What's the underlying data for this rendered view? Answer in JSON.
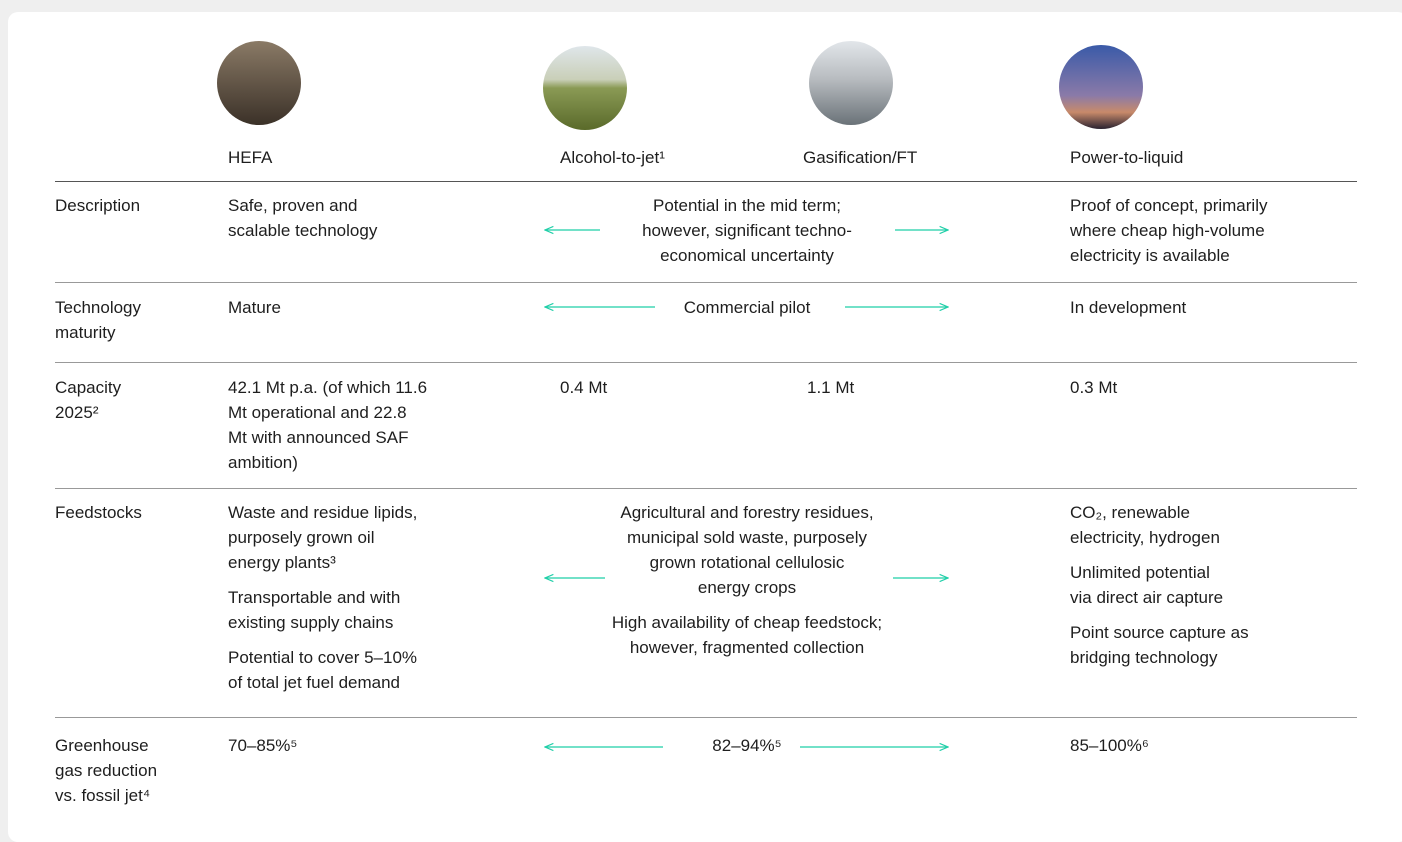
{
  "header": {
    "columns": [
      "HEFA",
      "Alcohol-to-jet¹",
      "Gasification/FT",
      "Power-to-liquid"
    ]
  },
  "rows": [
    {
      "label": [
        "Description"
      ],
      "hefa": [
        [
          "Safe, proven and",
          "scalable technology"
        ]
      ],
      "middle": [
        [
          "Potential in the mid term;",
          "however, significant techno-",
          "economical uncertainty"
        ]
      ],
      "ptl": [
        [
          "Proof of concept, primarily",
          "where cheap high-volume",
          "electricity is available"
        ]
      ]
    },
    {
      "label": [
        "Technology",
        "maturity"
      ],
      "hefa": [
        [
          "Mature"
        ]
      ],
      "middle": [
        [
          "Commercial pilot"
        ]
      ],
      "ptl": [
        [
          "In development"
        ]
      ]
    },
    {
      "label": [
        "Capacity",
        "2025²"
      ],
      "hefa": [
        [
          "42.1 Mt p.a. (of which 11.6",
          "Mt operational and 22.8",
          "Mt with announced SAF",
          "ambition)"
        ]
      ],
      "alcohol": [
        [
          "0.4 Mt"
        ]
      ],
      "gasification": [
        [
          "1.1 Mt"
        ]
      ],
      "ptl": [
        [
          "0.3 Mt"
        ]
      ]
    },
    {
      "label": [
        "Feedstocks"
      ],
      "hefa": [
        [
          "Waste and residue lipids,",
          "purposely grown oil",
          "energy plants³"
        ],
        [
          "Transportable and with",
          "existing supply chains"
        ],
        [
          "Potential to cover 5–10%",
          "of total jet fuel demand"
        ]
      ],
      "middle": [
        [
          "Agricultural and forestry residues,",
          "municipal sold waste, purposely",
          "grown rotational cellulosic",
          "energy crops"
        ],
        [
          "High availability of cheap feedstock;",
          "however, fragmented collection"
        ]
      ],
      "ptl": [
        [
          "CO₂, renewable",
          "electricity, hydrogen"
        ],
        [
          "Unlimited potential",
          "via direct air capture"
        ],
        [
          "Point source capture as",
          "bridging technology"
        ]
      ]
    },
    {
      "label": [
        "Greenhouse",
        "gas reduction",
        "vs. fossil jet⁴"
      ],
      "hefa": [
        [
          "70–85%⁵"
        ]
      ],
      "middle": [
        [
          "82–94%⁵"
        ]
      ],
      "ptl": [
        [
          "85–100%⁶"
        ]
      ]
    }
  ]
}
